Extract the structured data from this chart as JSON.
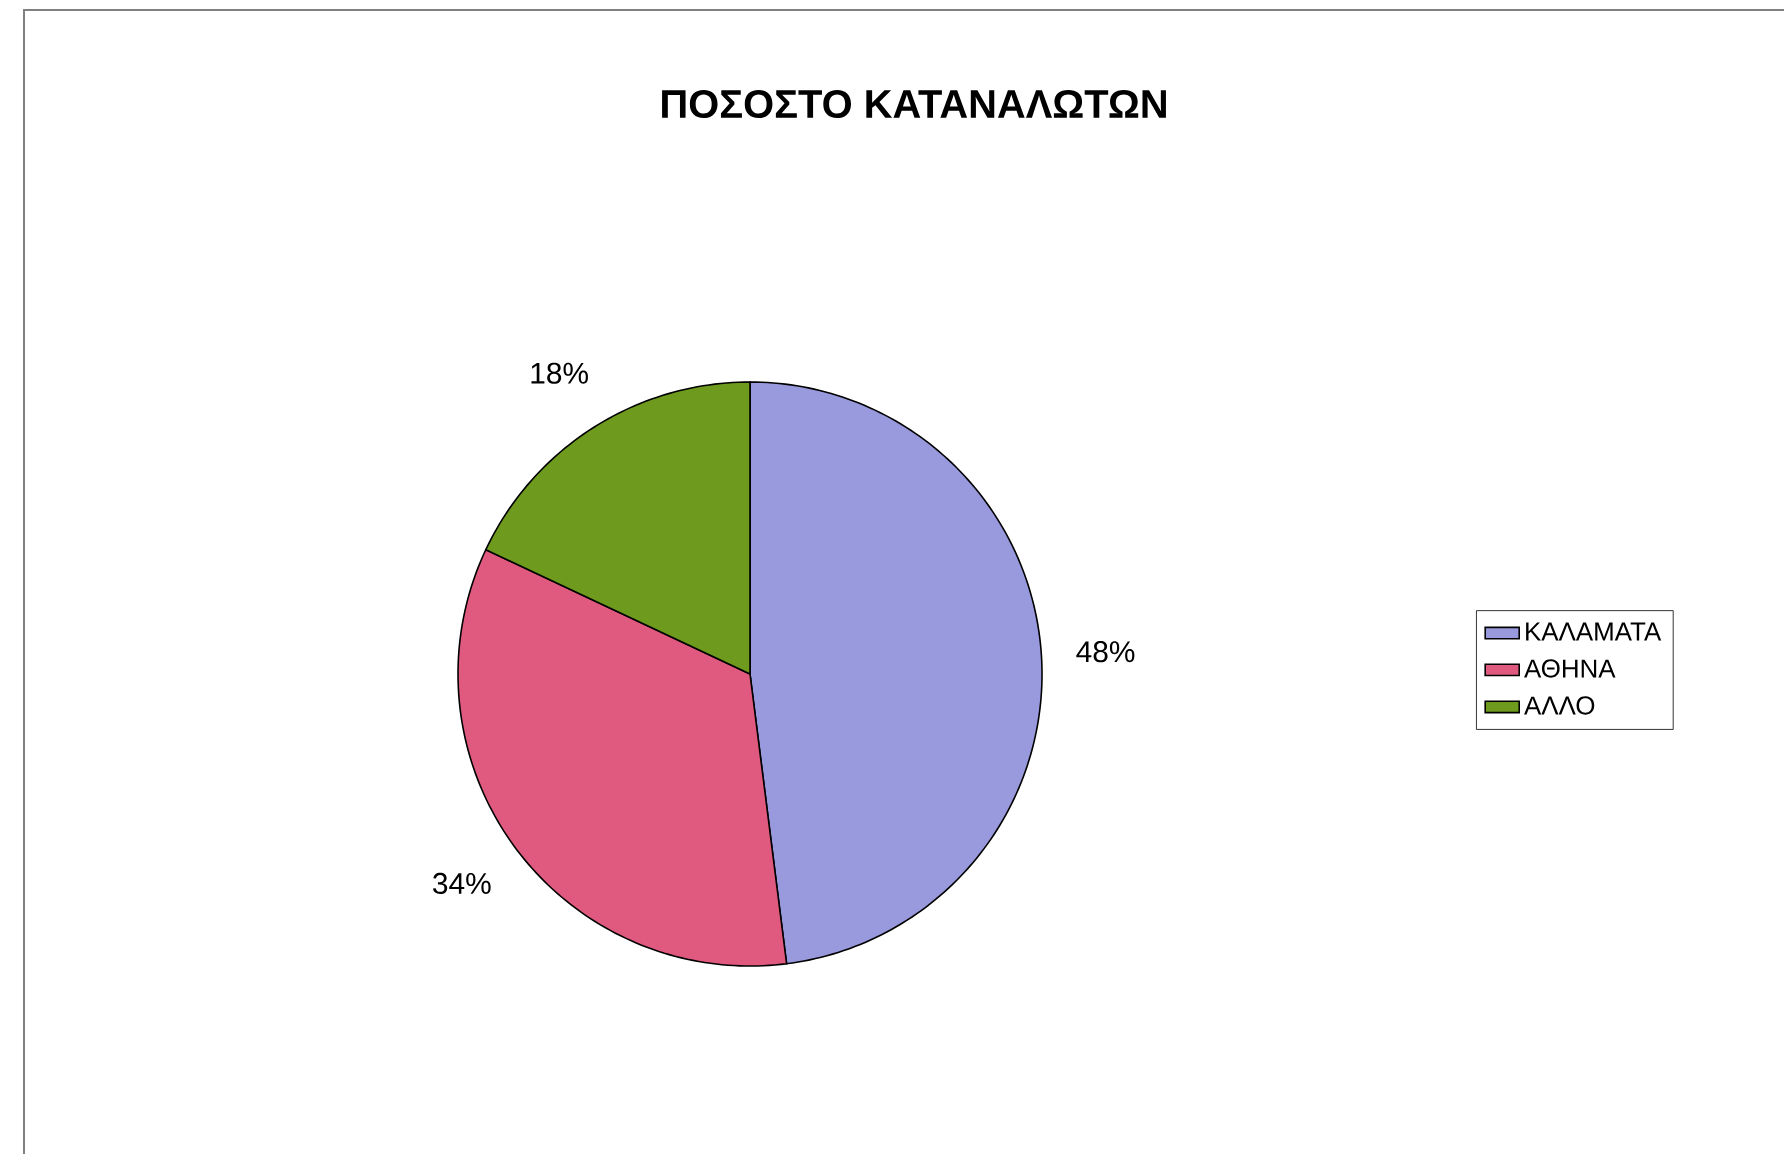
{
  "chart_data": {
    "type": "pie",
    "title": "ΠΟΣΟΣΤΟ ΚΑΤΑΝΑΛΩΤΩΝ",
    "categories": [
      "ΚΑΛΑΜΑΤΑ",
      "ΑΘΗΝΑ",
      "ΑΛΛΟ"
    ],
    "values": [
      48,
      34,
      18
    ],
    "colors": [
      "#9999dd",
      "#e05a80",
      "#6e9a1e"
    ],
    "value_labels": [
      "48%",
      "34%",
      "18%"
    ],
    "legend": "right"
  }
}
